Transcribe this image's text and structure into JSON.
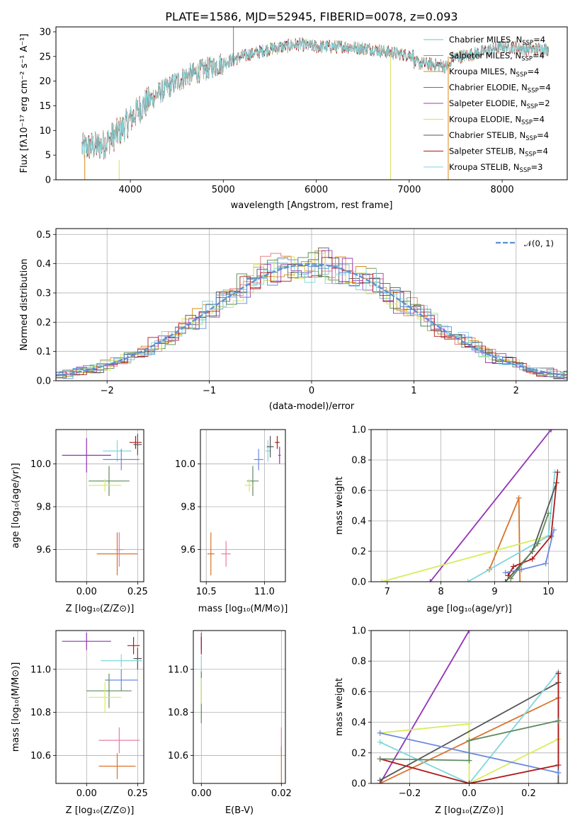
{
  "title": "PLATE=1586, MJD=52945, FIBERID=0078, z=0.093",
  "colors": {
    "Chabrier MILES": "#7fb8c4",
    "Salpeter MILES": "#e07070",
    "Kroupa MILES": "#d98c1a",
    "Chabrier ELODIE": "#4c8a4c",
    "Salpeter ELODIE": "#9b3cb8",
    "Kroupa ELODIE": "#d5e05a",
    "Chabrier STELIB": "#555555",
    "Salpeter STELIB": "#b01818",
    "Kroupa STELIB": "#7fd8dc",
    "gauss": "#5a8fd6",
    "lines": {
      "purple": "#9333b8",
      "orange": "#d9732a",
      "yellow": "#d8ec5a",
      "cyan": "#7fd6dc",
      "dark": "#555555",
      "red": "#b01818",
      "blue": "#6a8ae0",
      "green": "#5f8a5f",
      "pink": "#e87ca8"
    }
  },
  "chart_data": [
    {
      "id": "spectrum",
      "type": "line",
      "title": "PLATE=1586, MJD=52945, FIBERID=0078, z=0.093",
      "xlabel": "wavelength [Angstrom, rest frame]",
      "ylabel": "Flux [fλ10⁻¹⁷ erg cm⁻² s⁻¹ A⁻¹]",
      "xlim": [
        3200,
        8700
      ],
      "ylim": [
        0,
        31
      ],
      "xticks": [
        4000,
        5000,
        6000,
        7000,
        8000
      ],
      "yticks": [
        0,
        5,
        10,
        15,
        20,
        25,
        30
      ],
      "continuum": [
        [
          3480,
          6.5
        ],
        [
          3700,
          7
        ],
        [
          3900,
          10
        ],
        [
          4100,
          14.5
        ],
        [
          4300,
          17.5
        ],
        [
          4600,
          21
        ],
        [
          4900,
          23
        ],
        [
          5200,
          25
        ],
        [
          5500,
          26.5
        ],
        [
          5800,
          27.5
        ],
        [
          6000,
          27
        ],
        [
          6300,
          27
        ],
        [
          6600,
          26.5
        ],
        [
          6900,
          25.5
        ],
        [
          7200,
          25
        ],
        [
          7400,
          24.5
        ],
        [
          7700,
          25.5
        ],
        [
          8000,
          27
        ],
        [
          8300,
          26.5
        ],
        [
          8500,
          26.5
        ]
      ],
      "legend": [
        {
          "name": "Chabrier MILES, N_SSP=4",
          "label": "Chabrier MILES, N",
          "sub": "SSP",
          "suffix": "=4"
        },
        {
          "name": "Salpeter MILES, N_SSP=4",
          "label": "Salpeter MILES, N",
          "sub": "SSP",
          "suffix": "=4"
        },
        {
          "name": "Kroupa MILES, N_SSP=4",
          "label": "Kroupa MILES, N",
          "sub": "SSP",
          "suffix": "=4"
        },
        {
          "name": "Chabrier ELODIE, N_SSP=4",
          "label": "Chabrier ELODIE, N",
          "sub": "SSP",
          "suffix": "=4"
        },
        {
          "name": "Salpeter ELODIE, N_SSP=2",
          "label": "Salpeter ELODIE, N",
          "sub": "SSP",
          "suffix": "=2"
        },
        {
          "name": "Kroupa ELODIE, N_SSP=4",
          "label": "Kroupa ELODIE, N",
          "sub": "SSP",
          "suffix": "=4"
        },
        {
          "name": "Chabrier STELIB, N_SSP=4",
          "label": "Chabrier STELIB, N",
          "sub": "SSP",
          "suffix": "=4"
        },
        {
          "name": "Salpeter STELIB, N_SSP=4",
          "label": "Salpeter STELIB, N",
          "sub": "SSP",
          "suffix": "=4"
        },
        {
          "name": "Kroupa STELIB, N_SSP=3",
          "label": "Kroupa STELIB, N",
          "sub": "SSP",
          "suffix": "=3"
        }
      ]
    },
    {
      "id": "residuals",
      "type": "line",
      "xlabel": "(data-model)/error",
      "ylabel": "Normed distribution",
      "xlim": [
        -2.5,
        2.5
      ],
      "ylim": [
        0,
        0.52
      ],
      "xticks": [
        -2,
        -1,
        0,
        1,
        2
      ],
      "yticks": [
        0.0,
        0.1,
        0.2,
        0.3,
        0.4,
        0.5
      ],
      "grid": true,
      "legend": [
        "𝒩(0, 1)"
      ],
      "legend_position": "top-right",
      "bin_width": 0.1
    },
    {
      "id": "age_vs_Z",
      "type": "scatter",
      "xlabel": "Z [log₁₀(Z/Z⊙)]",
      "ylabel": "age [log₁₀(age/yr)]",
      "xlim": [
        -0.15,
        0.28
      ],
      "ylim": [
        9.45,
        10.16
      ],
      "xticks": [
        0.0,
        0.25
      ],
      "yticks": [
        9.6,
        9.8,
        10.0
      ],
      "points": [
        {
          "color": "purple",
          "x": 0.0,
          "y": 10.04,
          "xerr": 0.12,
          "yerr": 0.08
        },
        {
          "color": "cyan",
          "x": 0.15,
          "y": 10.06,
          "xerr": 0.07,
          "yerr": 0.05
        },
        {
          "color": "blue",
          "x": 0.17,
          "y": 10.02,
          "xerr": 0.09,
          "yerr": 0.05
        },
        {
          "color": "red",
          "x": 0.24,
          "y": 10.1,
          "xerr": 0.03,
          "yerr": 0.03
        },
        {
          "color": "dark",
          "x": 0.25,
          "y": 10.09,
          "xerr": 0.02,
          "yerr": 0.05
        },
        {
          "color": "green",
          "x": 0.11,
          "y": 9.92,
          "xerr": 0.1,
          "yerr": 0.07
        },
        {
          "color": "yellow",
          "x": 0.09,
          "y": 9.9,
          "xerr": 0.08,
          "yerr": 0.03
        },
        {
          "color": "orange",
          "x": 0.15,
          "y": 9.58,
          "xerr": 0.1,
          "yerr": 0.1
        },
        {
          "color": "pink",
          "x": 0.16,
          "y": 9.6,
          "xerr": 0.02,
          "yerr": 0.08
        }
      ]
    },
    {
      "id": "age_vs_mass",
      "type": "scatter",
      "xlabel": "mass [log₁₀(M/M⊙)]",
      "ylabel": "",
      "xlim": [
        10.45,
        11.18
      ],
      "ylim": [
        9.45,
        10.16
      ],
      "xticks": [
        10.5,
        11.0
      ],
      "yticks": [
        9.6,
        9.8,
        10.0
      ],
      "points": [
        {
          "color": "orange",
          "x": 10.54,
          "y": 9.58,
          "xerr": 0.03,
          "yerr": 0.1
        },
        {
          "color": "pink",
          "x": 10.67,
          "y": 9.58,
          "xerr": 0.04,
          "yerr": 0.06
        },
        {
          "color": "green",
          "x": 10.9,
          "y": 9.92,
          "xerr": 0.05,
          "yerr": 0.07
        },
        {
          "color": "yellow",
          "x": 10.87,
          "y": 9.9,
          "xerr": 0.04,
          "yerr": 0.03
        },
        {
          "color": "blue",
          "x": 10.95,
          "y": 10.02,
          "xerr": 0.04,
          "yerr": 0.05
        },
        {
          "color": "cyan",
          "x": 11.03,
          "y": 10.06,
          "xerr": 0.02,
          "yerr": 0.05
        },
        {
          "color": "dark",
          "x": 11.05,
          "y": 10.08,
          "xerr": 0.03,
          "yerr": 0.05
        },
        {
          "color": "red",
          "x": 11.11,
          "y": 10.1,
          "xerr": 0.02,
          "yerr": 0.03
        },
        {
          "color": "purple",
          "x": 11.13,
          "y": 10.04,
          "xerr": 0.01,
          "yerr": 0.04
        }
      ]
    },
    {
      "id": "weight_vs_age",
      "type": "line",
      "xlabel": "age [log₁₀(age/yr)]",
      "ylabel": "mass weight",
      "xlim": [
        6.7,
        10.35
      ],
      "ylim": [
        0,
        1.0
      ],
      "xticks": [
        7,
        8,
        9,
        10
      ],
      "yticks": [
        0.0,
        0.2,
        0.4,
        0.6,
        0.8,
        1.0
      ],
      "series": [
        {
          "color": "purple",
          "points": [
            [
              7.8,
              0.0
            ],
            [
              10.05,
              1.0
            ]
          ]
        },
        {
          "color": "orange",
          "points": [
            [
              8.9,
              0.08
            ],
            [
              9.45,
              0.55
            ],
            [
              9.47,
              0.0
            ]
          ]
        },
        {
          "color": "yellow",
          "points": [
            [
              6.9,
              0.0
            ],
            [
              10.0,
              0.3
            ]
          ]
        },
        {
          "color": "cyan",
          "points": [
            [
              8.5,
              0.0
            ],
            [
              10.0,
              0.3
            ],
            [
              10.12,
              0.72
            ]
          ]
        },
        {
          "color": "dark",
          "points": [
            [
              9.2,
              0.0
            ],
            [
              9.7,
              0.2
            ],
            [
              10.15,
              0.65
            ]
          ]
        },
        {
          "color": "red",
          "points": [
            [
              9.25,
              0.04
            ],
            [
              9.35,
              0.1
            ],
            [
              9.7,
              0.15
            ],
            [
              10.05,
              0.3
            ],
            [
              10.17,
              0.72
            ]
          ]
        },
        {
          "color": "blue",
          "points": [
            [
              9.2,
              0.06
            ],
            [
              9.5,
              0.08
            ],
            [
              9.95,
              0.12
            ],
            [
              10.1,
              0.34
            ]
          ]
        },
        {
          "color": "green",
          "points": [
            [
              9.3,
              0.02
            ],
            [
              9.8,
              0.25
            ],
            [
              10.0,
              0.45
            ]
          ]
        }
      ]
    },
    {
      "id": "mass_vs_Z",
      "type": "scatter",
      "xlabel": "Z [log₁₀(Z/Z⊙)]",
      "ylabel": "mass [log₁₀(M/M⊙)]",
      "xlim": [
        -0.15,
        0.28
      ],
      "ylim": [
        10.47,
        11.18
      ],
      "xticks": [
        0.0,
        0.25
      ],
      "yticks": [
        10.6,
        10.8,
        11.0
      ],
      "points": [
        {
          "color": "purple",
          "x": 0.0,
          "y": 11.13,
          "xerr": 0.12,
          "yerr": 0.04
        },
        {
          "color": "red",
          "x": 0.23,
          "y": 11.11,
          "xerr": 0.03,
          "yerr": 0.04
        },
        {
          "color": "dark",
          "x": 0.25,
          "y": 11.05,
          "xerr": 0.02,
          "yerr": 0.05
        },
        {
          "color": "cyan",
          "x": 0.17,
          "y": 11.04,
          "xerr": 0.1,
          "yerr": 0.03
        },
        {
          "color": "blue",
          "x": 0.17,
          "y": 10.95,
          "xerr": 0.08,
          "yerr": 0.05
        },
        {
          "color": "green",
          "x": 0.11,
          "y": 10.9,
          "xerr": 0.11,
          "yerr": 0.08
        },
        {
          "color": "yellow",
          "x": 0.09,
          "y": 10.87,
          "xerr": 0.08,
          "yerr": 0.07
        },
        {
          "color": "pink",
          "x": 0.16,
          "y": 10.67,
          "xerr": 0.1,
          "yerr": 0.06
        },
        {
          "color": "orange",
          "x": 0.15,
          "y": 10.55,
          "xerr": 0.09,
          "yerr": 0.06
        }
      ]
    },
    {
      "id": "mass_vs_EBV",
      "type": "scatter",
      "xlabel": "E(B-V)",
      "ylabel": "",
      "xlim": [
        -0.002,
        0.021
      ],
      "ylim": [
        10.47,
        11.18
      ],
      "xticks": [
        0.0,
        0.02
      ],
      "yticks": [
        10.6,
        10.8,
        11.0
      ],
      "points": [
        {
          "color": "purple",
          "x": 0.0,
          "y": 11.13,
          "xerr": 0.0,
          "yerr": 0.04
        },
        {
          "color": "red",
          "x": 0.0,
          "y": 11.11,
          "xerr": 0.0,
          "yerr": 0.04
        },
        {
          "color": "cyan",
          "x": 0.0,
          "y": 11.0,
          "xerr": 0.0,
          "yerr": 0.06
        },
        {
          "color": "green",
          "x": 0.0,
          "y": 10.87,
          "xerr": 0.0,
          "yerr": 0.12
        },
        {
          "color": "yellow",
          "x": 0.0,
          "y": 10.9,
          "xerr": 0.0,
          "yerr": 0.06
        },
        {
          "color": "pink",
          "x": 0.02,
          "y": 10.67,
          "xerr": 0.0,
          "yerr": 0.06
        },
        {
          "color": "orange",
          "x": 0.02,
          "y": 10.55,
          "xerr": 0.0,
          "yerr": 0.09
        }
      ]
    },
    {
      "id": "weight_vs_Z",
      "type": "line",
      "xlabel": "Z [log₁₀(Z/Z⊙)]",
      "ylabel": "mass weight",
      "xlim": [
        -0.33,
        0.33
      ],
      "ylim": [
        0,
        1.0
      ],
      "xticks": [
        -0.2,
        0.0,
        0.2
      ],
      "yticks": [
        0.0,
        0.2,
        0.4,
        0.6,
        0.8,
        1.0
      ],
      "series": [
        {
          "color": "purple",
          "points": [
            [
              -0.3,
              0.0
            ],
            [
              0.0,
              1.0
            ]
          ]
        },
        {
          "color": "yellow",
          "points": [
            [
              -0.3,
              0.33
            ],
            [
              0.0,
              0.39
            ],
            [
              0.0,
              0.0
            ],
            [
              0.3,
              0.29
            ]
          ]
        },
        {
          "color": "orange",
          "points": [
            [
              -0.3,
              0.0
            ],
            [
              0.3,
              0.56
            ]
          ]
        },
        {
          "color": "dark",
          "points": [
            [
              -0.3,
              0.02
            ],
            [
              0.3,
              0.66
            ],
            [
              0.3,
              0.0
            ]
          ]
        },
        {
          "color": "cyan",
          "points": [
            [
              -0.3,
              0.27
            ],
            [
              0.0,
              0.0
            ],
            [
              0.3,
              0.73
            ]
          ]
        },
        {
          "color": "blue",
          "points": [
            [
              -0.3,
              0.33
            ],
            [
              0.3,
              0.07
            ]
          ]
        },
        {
          "color": "red",
          "points": [
            [
              -0.3,
              0.16
            ],
            [
              0.0,
              0.0
            ],
            [
              0.3,
              0.12
            ],
            [
              0.3,
              0.72
            ]
          ]
        },
        {
          "color": "green",
          "points": [
            [
              -0.3,
              0.16
            ],
            [
              0.0,
              0.15
            ],
            [
              0.0,
              0.28
            ],
            [
              0.3,
              0.41
            ]
          ]
        }
      ]
    }
  ]
}
